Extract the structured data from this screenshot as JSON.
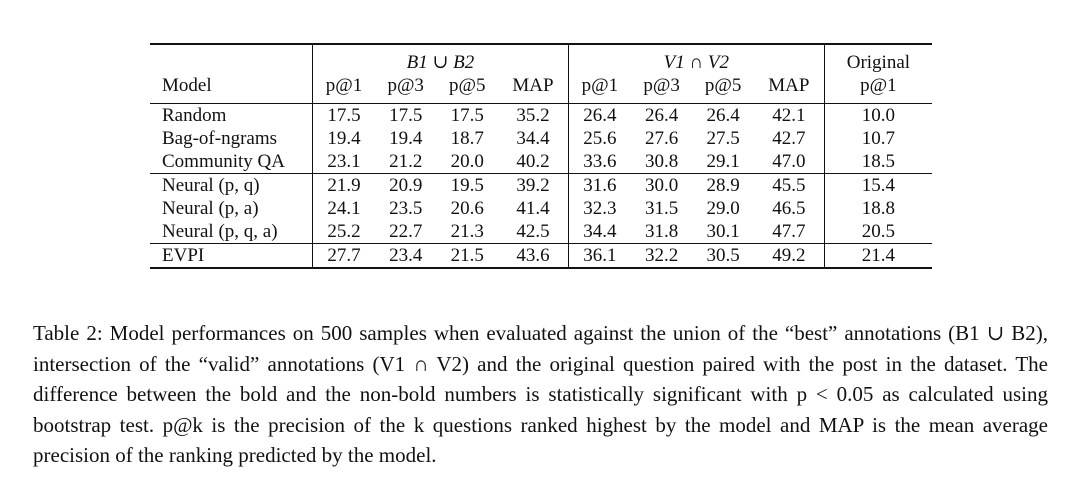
{
  "table": {
    "groups": [
      "B1 ∪ B2",
      "V1 ∩ V2",
      "Original"
    ],
    "model_header": "Model",
    "metric_headers": [
      "p@1",
      "p@3",
      "p@5",
      "MAP",
      "p@1",
      "p@3",
      "p@5",
      "MAP",
      "p@1"
    ],
    "sections": [
      {
        "rows": [
          {
            "model": "Random",
            "values": [
              "17.5",
              "17.5",
              "17.5",
              "35.2",
              "26.4",
              "26.4",
              "26.4",
              "42.1",
              "10.0"
            ],
            "bold": [
              false,
              false,
              false,
              false,
              false,
              false,
              false,
              false,
              false
            ]
          },
          {
            "model": "Bag-of-ngrams",
            "values": [
              "19.4",
              "19.4",
              "18.7",
              "34.4",
              "25.6",
              "27.6",
              "27.5",
              "42.7",
              "10.7"
            ],
            "bold": [
              false,
              false,
              false,
              false,
              false,
              false,
              false,
              false,
              false
            ]
          },
          {
            "model": "Community QA",
            "values": [
              "23.1",
              "21.2",
              "20.0",
              "40.2",
              "33.6",
              "30.8",
              "29.1",
              "47.0",
              "18.5"
            ],
            "bold": [
              false,
              false,
              false,
              false,
              false,
              false,
              false,
              false,
              false
            ]
          }
        ]
      },
      {
        "rows": [
          {
            "model": "Neural (p, q)",
            "values": [
              "21.9",
              "20.9",
              "19.5",
              "39.2",
              "31.6",
              "30.0",
              "28.9",
              "45.5",
              "15.4"
            ],
            "bold": [
              false,
              false,
              false,
              false,
              false,
              false,
              false,
              false,
              false
            ]
          },
          {
            "model": "Neural (p, a)",
            "values": [
              "24.1",
              "23.5",
              "20.6",
              "41.4",
              "32.3",
              "31.5",
              "29.0",
              "46.5",
              "18.8"
            ],
            "bold": [
              false,
              true,
              false,
              false,
              false,
              true,
              false,
              false,
              false
            ]
          },
          {
            "model": "Neural (p, q, a)",
            "values": [
              "25.2",
              "22.7",
              "21.3",
              "42.5",
              "34.4",
              "31.8",
              "30.1",
              "47.7",
              "20.5"
            ],
            "bold": [
              false,
              true,
              true,
              false,
              false,
              true,
              true,
              false,
              false
            ]
          }
        ]
      },
      {
        "rows": [
          {
            "model": "EVPI",
            "values": [
              "27.7",
              "23.4",
              "21.5",
              "43.6",
              "36.1",
              "32.2",
              "30.5",
              "49.2",
              "21.4"
            ],
            "bold": [
              true,
              true,
              true,
              true,
              true,
              true,
              true,
              true,
              true
            ]
          }
        ]
      }
    ]
  },
  "caption": "Table 2: Model performances on 500 samples when evaluated against the union of the “best” annotations (B1 ∪ B2), intersection of the “valid” annotations (V1 ∩ V2) and the original question paired with the post in the dataset. The difference between the bold and the non-bold numbers is statistically significant with p < 0.05 as calculated using bootstrap test. p@k is the precision of the k questions ranked highest by the model and MAP is the mean average precision of the ranking predicted by the model."
}
